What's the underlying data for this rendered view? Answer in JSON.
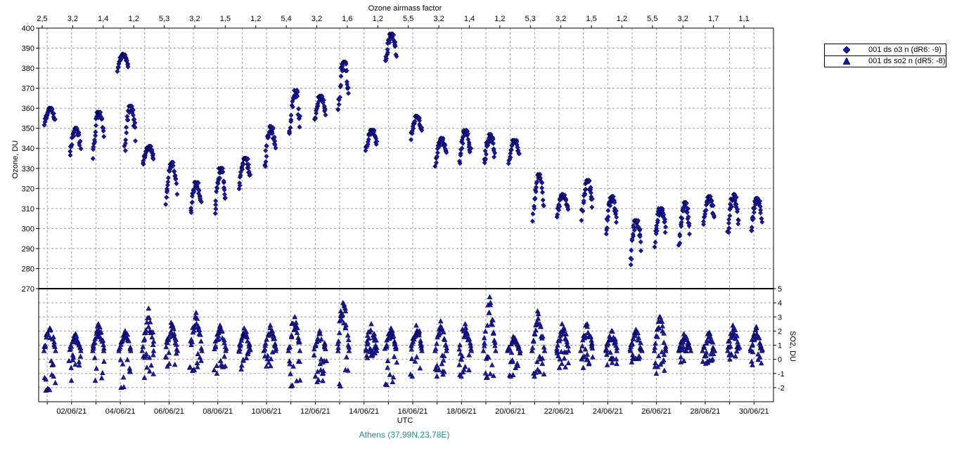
{
  "chart_data": {
    "type": "scatter",
    "top_axis": {
      "title": "Ozone airmass factor",
      "tick_labels": [
        "2,5",
        "3,2",
        "1,4",
        "1,2",
        "5,3",
        "3,2",
        "1,5",
        "1,2",
        "5,4",
        "3,2",
        "1,6",
        "1,2",
        "5,5",
        "3,2",
        "1,4",
        "1,2",
        "5,3",
        "3,2",
        "1,5",
        "1,2",
        "5,5",
        "3,2",
        "1,7",
        "1,1"
      ]
    },
    "x_axis": {
      "label": "UTC",
      "range_days": [
        0.65,
        30.8
      ],
      "ticks": [
        {
          "day": 2,
          "label": "02/06/21"
        },
        {
          "day": 4,
          "label": "04/06/21"
        },
        {
          "day": 6,
          "label": "06/06/21"
        },
        {
          "day": 8,
          "label": "08/06/21"
        },
        {
          "day": 10,
          "label": "10/06/21"
        },
        {
          "day": 12,
          "label": "12/06/21"
        },
        {
          "day": 14,
          "label": "14/06/21"
        },
        {
          "day": 16,
          "label": "16/06/21"
        },
        {
          "day": 18,
          "label": "18/06/21"
        },
        {
          "day": 20,
          "label": "20/06/21"
        },
        {
          "day": 22,
          "label": "22/06/21"
        },
        {
          "day": 24,
          "label": "24/06/21"
        },
        {
          "day": 26,
          "label": "26/06/21"
        },
        {
          "day": 28,
          "label": "28/06/21"
        },
        {
          "day": 30,
          "label": "30/06/21"
        }
      ]
    },
    "y_axis_ozone": {
      "label": "Ozone, DU",
      "range": [
        270,
        400
      ],
      "ticks": [
        270,
        280,
        290,
        300,
        310,
        320,
        330,
        340,
        350,
        360,
        370,
        380,
        390,
        400
      ]
    },
    "y_axis_so2": {
      "label": "SO2, DU",
      "range": [
        -3,
        5
      ],
      "ticks": [
        -2,
        -1,
        0,
        1,
        2,
        3,
        4,
        5
      ],
      "tick_labels": [
        "-2",
        "-1",
        "0",
        "1",
        "2",
        "3",
        "4",
        "5"
      ]
    },
    "grid": true,
    "legend_position": "top-right",
    "series": [
      {
        "name": "001 ds o3  n (dR6: -9)",
        "marker": "diamond",
        "axis": "ozone",
        "color": "#1a1aa8",
        "day_clusters": [
          {
            "day": 1.1,
            "low": 350,
            "high": 360
          },
          {
            "day": 2.15,
            "low": 335,
            "high": 350
          },
          {
            "day": 3.1,
            "low": 334,
            "high": 358
          },
          {
            "day": 4.1,
            "low": 378,
            "high": 387
          },
          {
            "day": 4.4,
            "low": 336,
            "high": 361
          },
          {
            "day": 5.15,
            "low": 331,
            "high": 341
          },
          {
            "day": 6.1,
            "low": 310,
            "high": 333
          },
          {
            "day": 7.1,
            "low": 305,
            "high": 323
          },
          {
            "day": 8.1,
            "low": 305,
            "high": 330
          },
          {
            "day": 9.1,
            "low": 319,
            "high": 335
          },
          {
            "day": 10.15,
            "low": 328,
            "high": 351
          },
          {
            "day": 11.15,
            "low": 340,
            "high": 369
          },
          {
            "day": 12.2,
            "low": 352,
            "high": 366
          },
          {
            "day": 13.15,
            "low": 351,
            "high": 383
          },
          {
            "day": 14.3,
            "low": 338,
            "high": 349
          },
          {
            "day": 15.1,
            "low": 380,
            "high": 397
          },
          {
            "day": 16.15,
            "low": 344,
            "high": 356
          },
          {
            "day": 17.15,
            "low": 330,
            "high": 345
          },
          {
            "day": 18.15,
            "low": 330,
            "high": 349
          },
          {
            "day": 19.15,
            "low": 329,
            "high": 347
          },
          {
            "day": 20.15,
            "low": 331,
            "high": 344
          },
          {
            "day": 21.15,
            "low": 302,
            "high": 327
          },
          {
            "day": 22.15,
            "low": 305,
            "high": 317
          },
          {
            "day": 23.15,
            "low": 303,
            "high": 324
          },
          {
            "day": 24.15,
            "low": 295,
            "high": 316
          },
          {
            "day": 25.15,
            "low": 280,
            "high": 304
          },
          {
            "day": 26.15,
            "low": 290,
            "high": 310
          },
          {
            "day": 27.15,
            "low": 290,
            "high": 313
          },
          {
            "day": 28.15,
            "low": 299,
            "high": 316
          },
          {
            "day": 29.15,
            "low": 294,
            "high": 317
          },
          {
            "day": 30.1,
            "low": 295,
            "high": 315
          }
        ]
      },
      {
        "name": "001 ds so2 n (dR5: -8)",
        "marker": "triangle",
        "axis": "so2",
        "color": "#1a1aa8",
        "day_clusters": [
          {
            "day": 1.1,
            "low": -2.2,
            "high": 2.2
          },
          {
            "day": 2.15,
            "low": -1.5,
            "high": 1.8
          },
          {
            "day": 3.1,
            "low": -1.5,
            "high": 2.5
          },
          {
            "day": 4.2,
            "low": -2.0,
            "high": 2.0
          },
          {
            "day": 5.15,
            "low": -1.3,
            "high": 3.6
          },
          {
            "day": 6.1,
            "low": -0.5,
            "high": 2.6
          },
          {
            "day": 7.1,
            "low": -0.8,
            "high": 3.3
          },
          {
            "day": 8.1,
            "low": -1.0,
            "high": 2.4
          },
          {
            "day": 9.1,
            "low": -0.7,
            "high": 2.2
          },
          {
            "day": 10.15,
            "low": -0.5,
            "high": 2.4
          },
          {
            "day": 11.15,
            "low": -1.9,
            "high": 3.0
          },
          {
            "day": 12.2,
            "low": -1.6,
            "high": 2.0
          },
          {
            "day": 13.15,
            "low": -1.9,
            "high": 4.0
          },
          {
            "day": 14.3,
            "low": 0.1,
            "high": 2.5
          },
          {
            "day": 15.1,
            "low": -1.8,
            "high": 2.2
          },
          {
            "day": 16.15,
            "low": -1.2,
            "high": 2.4
          },
          {
            "day": 17.15,
            "low": -1.2,
            "high": 2.7
          },
          {
            "day": 18.15,
            "low": -1.2,
            "high": 2.5
          },
          {
            "day": 19.15,
            "low": -1.3,
            "high": 4.4
          },
          {
            "day": 20.15,
            "low": -1.2,
            "high": 1.6
          },
          {
            "day": 21.15,
            "low": -1.2,
            "high": 3.4
          },
          {
            "day": 22.15,
            "low": -0.6,
            "high": 2.5
          },
          {
            "day": 23.15,
            "low": -0.6,
            "high": 2.5
          },
          {
            "day": 24.15,
            "low": -0.4,
            "high": 2.0
          },
          {
            "day": 25.15,
            "low": -0.2,
            "high": 2.1
          },
          {
            "day": 26.15,
            "low": -1.0,
            "high": 3.0
          },
          {
            "day": 27.15,
            "low": -0.2,
            "high": 1.8
          },
          {
            "day": 28.15,
            "low": -0.3,
            "high": 1.9
          },
          {
            "day": 29.15,
            "low": 0.0,
            "high": 2.4
          },
          {
            "day": 30.1,
            "low": -0.4,
            "high": 2.3
          }
        ]
      }
    ]
  },
  "station_label": "Athens (37,99N,23,78E)"
}
